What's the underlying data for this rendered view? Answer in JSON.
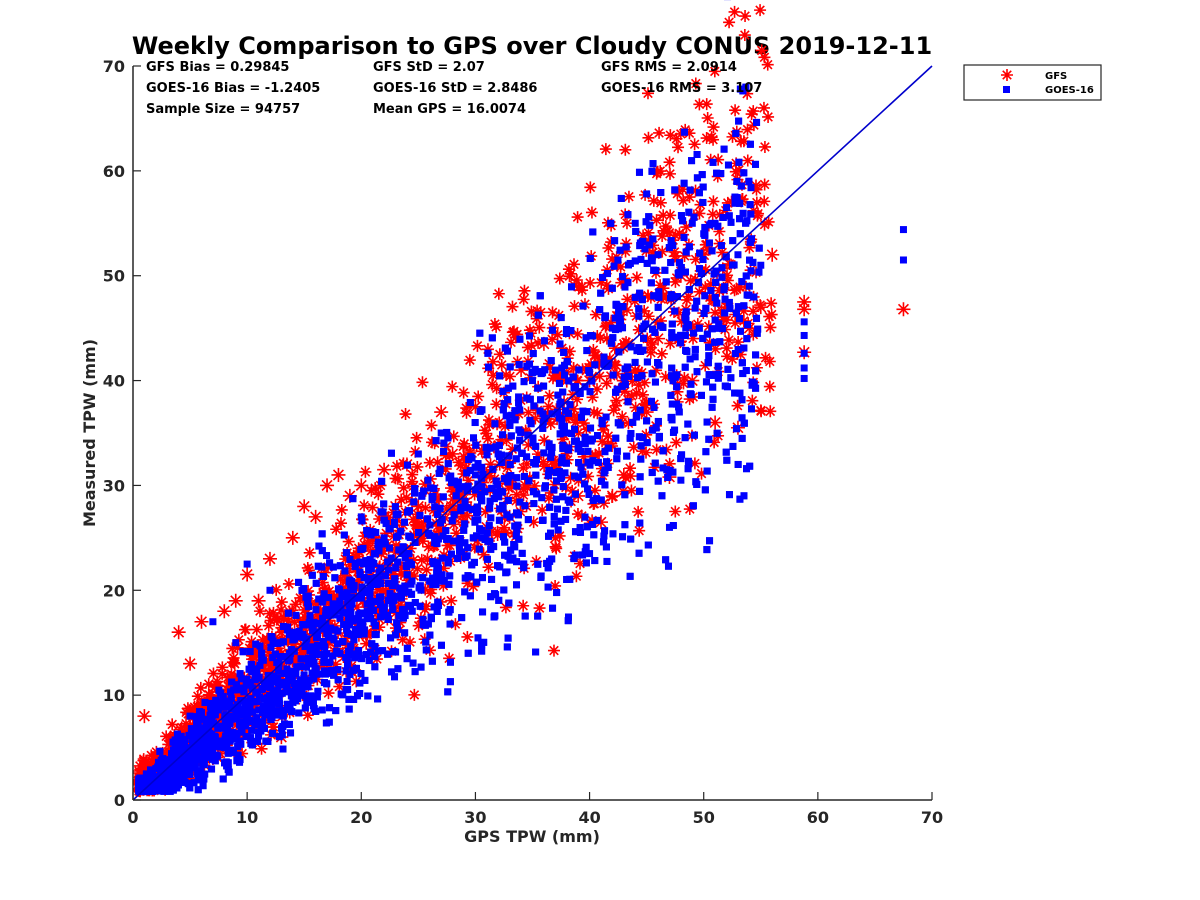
{
  "chart_data": {
    "type": "scatter",
    "title": "Weekly Comparison to GPS over Cloudy CONUS 2019-12-11",
    "xlabel": "GPS TPW (mm)",
    "ylabel": "Measured TPW (mm)",
    "xlim": [
      0,
      70
    ],
    "ylim": [
      0,
      70
    ],
    "xticks": [
      "0",
      "10",
      "20",
      "30",
      "40",
      "50",
      "60",
      "70"
    ],
    "yticks": [
      "0",
      "10",
      "20",
      "30",
      "40",
      "50",
      "60",
      "70"
    ],
    "grid": false,
    "legend_position": "outside-top-right",
    "stats": [
      [
        "GFS Bias = 0.29845",
        "GFS StD = 2.07",
        "GFS RMS = 2.0914"
      ],
      [
        "GOES-16 Bias = -1.2405",
        "GOES-16 StD = 2.8486",
        "GOES-16 RMS = 3.107"
      ],
      [
        "Sample Size = 94757",
        "Mean GPS = 16.0074",
        ""
      ]
    ],
    "reference_line": {
      "x": [
        0,
        70
      ],
      "y": [
        0,
        70
      ],
      "color": "#0000cc"
    },
    "series": [
      {
        "name": "GFS",
        "marker": "asterisk",
        "color": "#ff0000",
        "cloud": {
          "x_range": [
            0.5,
            56
          ],
          "slope": 1.0,
          "intercept": 0.6,
          "spread": 0.18,
          "count": 1600
        },
        "x": [
          1,
          1.5,
          2,
          3,
          4,
          4.5,
          5,
          6,
          7,
          8,
          9,
          10,
          11,
          12,
          13,
          14,
          15,
          16,
          17,
          18,
          19,
          20,
          21,
          22,
          23,
          24,
          25,
          27,
          28,
          30,
          31,
          33,
          34,
          36,
          37,
          38,
          39,
          40,
          41,
          42,
          43,
          44,
          45,
          46,
          47,
          48,
          49,
          50,
          51,
          52,
          53,
          54,
          55,
          56,
          58.8,
          58.8,
          58.8,
          67.5
        ],
        "y": [
          8,
          2,
          1.3,
          1.5,
          16,
          2.5,
          13,
          17,
          4,
          18,
          19,
          21.5,
          19,
          23,
          6,
          25,
          28,
          27,
          30,
          31,
          29,
          30,
          25,
          31.5,
          28,
          32,
          28,
          37,
          33,
          37.5,
          26,
          27,
          41,
          43.5,
          25,
          40,
          29,
          40,
          26.5,
          29,
          31,
          41,
          37,
          44,
          30.8,
          50,
          40,
          52,
          36,
          47,
          35.5,
          45,
          47,
          52,
          47.5,
          46.8,
          42.7,
          46.8
        ]
      },
      {
        "name": "GOES-16",
        "marker": "square",
        "color": "#0000ff",
        "cloud": {
          "x_range": [
            0.5,
            55
          ],
          "slope": 0.93,
          "intercept": -0.4,
          "spread": 0.2,
          "count": 4200
        },
        "x": [
          1,
          2,
          3,
          4,
          5,
          6,
          7,
          8,
          9,
          10,
          12,
          14,
          16,
          18,
          20,
          22,
          25,
          27,
          30,
          33,
          35,
          37,
          38,
          40,
          42,
          44,
          45,
          46,
          47,
          48,
          49,
          50,
          51,
          52,
          53,
          54,
          55,
          58.8,
          58.8,
          58.8,
          58.8,
          58.8,
          67.5,
          67.5
        ],
        "y": [
          1.5,
          3,
          2.5,
          6,
          8,
          4,
          17,
          5,
          15,
          22.5,
          20,
          16,
          12,
          18,
          27,
          25,
          33,
          35,
          31,
          36,
          40,
          41,
          35,
          23.5,
          45,
          55,
          57.8,
          52,
          26,
          30.5,
          55,
          54,
          55,
          56.5,
          52,
          49,
          51,
          45.6,
          44.3,
          42.6,
          41.2,
          40.2,
          54.4,
          51.5
        ]
      }
    ]
  }
}
